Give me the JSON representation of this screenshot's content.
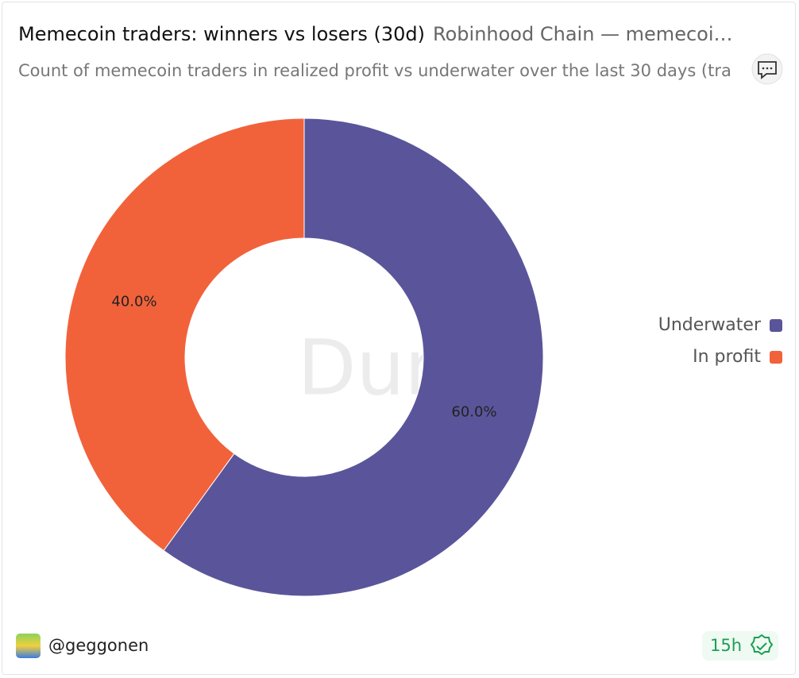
{
  "chart_data": {
    "type": "pie",
    "title": "Memecoin traders: winners vs losers (30d)",
    "subtitle": "Robinhood Chain — memecoi…",
    "description": "Count of memecoin traders in realized profit vs underwater over the last 30 days (tra",
    "watermark": "Dune",
    "categories": [
      "Underwater",
      "In profit"
    ],
    "values": [
      60.0,
      40.0
    ],
    "value_labels": [
      "60.0%",
      "40.0%"
    ],
    "colors": [
      "#5a559a",
      "#f1623b"
    ],
    "donut": true,
    "legend": "right"
  },
  "footer": {
    "author": "@geggonen",
    "age": "15h"
  }
}
